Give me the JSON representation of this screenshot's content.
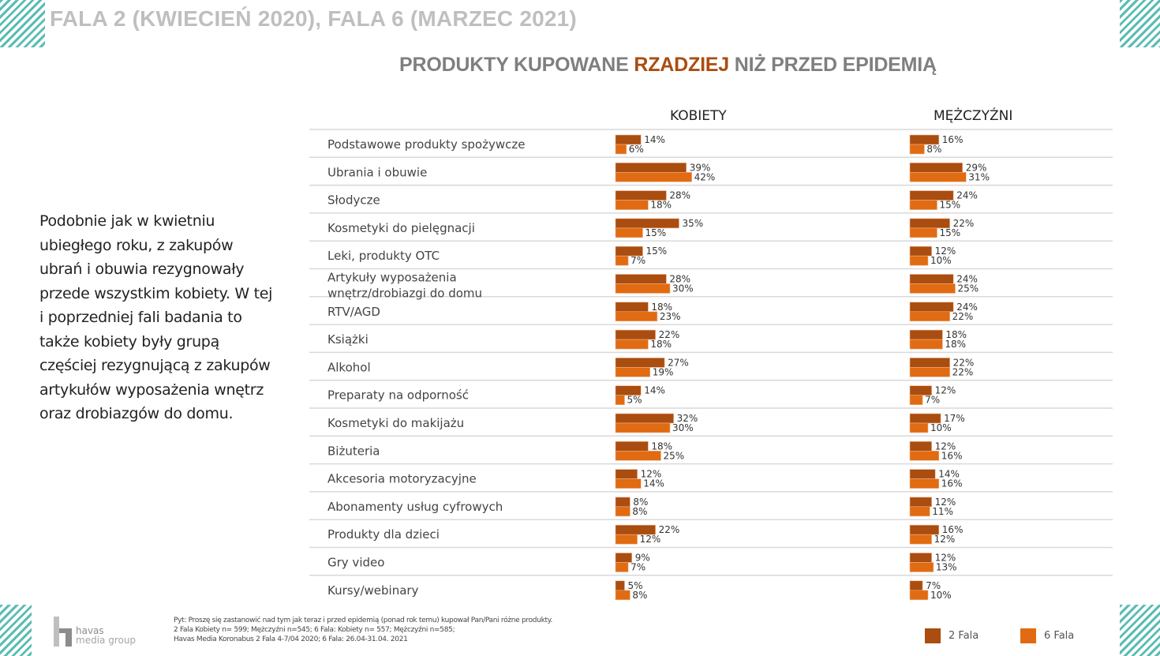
{
  "header": {
    "title": "FALA 2 (KWIECIEŃ 2020), FALA 6 (MARZEC 2021)",
    "subtitle_pre": "PRODUKTY KUPOWANE ",
    "subtitle_highlight": "RZADZIEJ",
    "subtitle_post": " NIŻ PRZED EPIDEMIĄ"
  },
  "side_text": "Podobnie jak w kwietniu ubiegłego roku, z zakupów ubrań i obuwia rezygnowały przede wszystkim kobiety. W tej i poprzedniej fali badania to także kobiety były grupą częściej rezygnującą z zakupów artykułów wyposażenia wnętrz oraz drobiazgów do domu.",
  "footnote": {
    "line1": "Pyt: Proszę się zastanowić nad tym jak teraz i  przed epidemią (ponad rok temu) kupował Pan/Pani różne produkty.",
    "line2": "2 Fala Kobiety n= 599; Mężczyźni n=545; 6 Fala: Kobiety n= 557; Mężczyźni n=585;",
    "line3": "Havas Media Koronabus 2 Fala 4-7/04 2020; 6 Fala: 26.04-31.04. 2021"
  },
  "logo": {
    "line1": "havas",
    "line2": "media group"
  },
  "colors": {
    "fala2": "#a94d10",
    "fala6": "#e06b12",
    "stripes": "#5bbcb4",
    "title_gray": "#bfbfbf",
    "subtitle_gray": "#7f7f7f"
  },
  "chart_data": {
    "type": "bar",
    "orientation": "horizontal",
    "title": "PRODUKTY KUPOWANE RZADZIEJ NIŻ PRZED EPIDEMIĄ",
    "panels": [
      "KOBIETY",
      "MĘŻCZYŹNI"
    ],
    "legend": [
      "2 Fala",
      "6 Fala"
    ],
    "legend_position": "bottom-right",
    "unit": "%",
    "xlim": [
      0,
      100
    ],
    "categories": [
      "Podstawowe produkty spożywcze",
      "Ubrania i obuwie",
      "Słodycze",
      "Kosmetyki do pielęgnacji",
      "Leki, produkty OTC",
      "Artykuły wyposażenia\nwnętrz/drobiazgi do domu",
      "RTV/AGD",
      "Książki",
      "Alkohol",
      "Preparaty na odporność",
      "Kosmetyki do makijażu",
      "Biżuteria",
      "Akcesoria motoryzacyjne",
      " Abonamenty usług cyfrowych",
      " Produkty dla dzieci",
      "Gry video",
      "Kursy/webinary"
    ],
    "series": [
      {
        "name": "2 Fala",
        "panel": "KOBIETY",
        "values": [
          14,
          39,
          28,
          35,
          15,
          28,
          18,
          22,
          27,
          14,
          32,
          18,
          12,
          8,
          22,
          9,
          5
        ]
      },
      {
        "name": "6 Fala",
        "panel": "KOBIETY",
        "values": [
          6,
          42,
          18,
          15,
          7,
          30,
          23,
          18,
          19,
          5,
          30,
          25,
          14,
          8,
          12,
          7,
          8
        ]
      },
      {
        "name": "2 Fala",
        "panel": "MĘŻCZYŹNI",
        "values": [
          16,
          29,
          24,
          22,
          12,
          24,
          24,
          18,
          22,
          12,
          17,
          12,
          14,
          12,
          16,
          12,
          7
        ]
      },
      {
        "name": "6 Fala",
        "panel": "MĘŻCZYŹNI",
        "values": [
          8,
          31,
          15,
          15,
          10,
          25,
          22,
          18,
          22,
          7,
          10,
          16,
          16,
          11,
          12,
          13,
          10
        ]
      }
    ]
  }
}
